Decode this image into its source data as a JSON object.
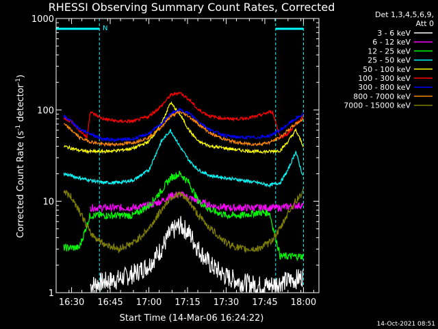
{
  "chart_data": {
    "type": "line",
    "title": "RHESSI Observing Summary Count Rates, Corrected",
    "xlabel": "Start Time (14-Mar-06 16:24:22)",
    "ylabel_main": "Corrected Count Rate (s",
    "ylabel_sup1": "-1",
    "ylabel_mid": " detector",
    "ylabel_sup2": "-1",
    "ylabel_end": ")",
    "yscale": "log",
    "ylim": [
      1,
      1000
    ],
    "xlim_minutes": [
      16.4,
      18.1
    ],
    "x_ticks": [
      {
        "v": 16.5,
        "label": "16:30"
      },
      {
        "v": 16.75,
        "label": "16:45"
      },
      {
        "v": 17.0,
        "label": "17:00"
      },
      {
        "v": 17.25,
        "label": "17:15"
      },
      {
        "v": 17.5,
        "label": "17:30"
      },
      {
        "v": 17.75,
        "label": "17:45"
      },
      {
        "v": 18.0,
        "label": "18:00"
      }
    ],
    "y_ticks": [
      {
        "v": 1,
        "label": "1"
      },
      {
        "v": 10,
        "label": "10"
      },
      {
        "v": 100,
        "label": "100"
      },
      {
        "v": 1000,
        "label": "1000"
      }
    ],
    "legend_header": [
      "Det 1,3,4,5,6,9,",
      "Att 0"
    ],
    "legend_position": "right",
    "flag_label": "N",
    "night_intervals": [
      [
        16.4,
        16.68
      ],
      [
        17.82,
        18.0
      ]
    ],
    "series": [
      {
        "name": "3 - 6 keV",
        "color": "#ffffff",
        "x": [
          16.45,
          16.55,
          16.62,
          16.7,
          16.8,
          16.9,
          17.0,
          17.08,
          17.14,
          17.2,
          17.26,
          17.32,
          17.4,
          17.5,
          17.6,
          17.7,
          17.78,
          17.85,
          17.95,
          18.0
        ],
        "y": [
          null,
          null,
          1.2,
          1.3,
          1.4,
          1.6,
          2.0,
          3.0,
          4.5,
          5.5,
          4.5,
          3.0,
          2.0,
          1.5,
          1.3,
          1.2,
          1.2,
          1.3,
          1.4,
          1.5
        ]
      },
      {
        "name": "6 - 12 keV",
        "color": "#ff00ff",
        "x": [
          16.45,
          16.55,
          16.62,
          16.7,
          16.8,
          16.9,
          17.0,
          17.08,
          17.14,
          17.2,
          17.26,
          17.32,
          17.4,
          17.5,
          17.6,
          17.7,
          17.78,
          17.85,
          17.95,
          18.0
        ],
        "y": [
          null,
          null,
          8.5,
          8.5,
          8.5,
          8.5,
          9.0,
          10.0,
          11.5,
          12.0,
          11.0,
          10.0,
          9.0,
          8.5,
          8.5,
          8.5,
          8.5,
          8.5,
          9.0,
          9.0
        ]
      },
      {
        "name": "12 - 25 keV",
        "color": "#00ff00",
        "x": [
          16.45,
          16.55,
          16.62,
          16.7,
          16.8,
          16.9,
          17.0,
          17.08,
          17.14,
          17.2,
          17.26,
          17.32,
          17.4,
          17.5,
          17.6,
          17.7,
          17.78,
          17.85,
          17.95,
          18.0
        ],
        "y": [
          3.1,
          3.1,
          7.0,
          7.0,
          7.0,
          7.0,
          9.0,
          13.0,
          18.0,
          20.0,
          16.0,
          10.0,
          8.0,
          7.0,
          7.0,
          7.5,
          7.5,
          2.5,
          2.5,
          2.5
        ]
      },
      {
        "name": "25 - 50 keV",
        "color": "#00ffff",
        "x": [
          16.45,
          16.5,
          16.55,
          16.62,
          16.7,
          16.8,
          16.9,
          17.0,
          17.08,
          17.14,
          17.2,
          17.26,
          17.32,
          17.4,
          17.5,
          17.6,
          17.7,
          17.78,
          17.85,
          17.9,
          17.95,
          18.0
        ],
        "y": [
          20,
          19,
          18,
          17,
          16,
          16,
          17,
          22,
          45,
          60,
          40,
          28,
          22,
          19,
          18,
          17,
          16,
          15,
          16,
          22,
          35,
          18
        ]
      },
      {
        "name": "50 - 100 keV",
        "color": "#ffff00",
        "x": [
          16.45,
          16.5,
          16.55,
          16.62,
          16.7,
          16.8,
          16.9,
          17.0,
          17.08,
          17.14,
          17.2,
          17.26,
          17.32,
          17.4,
          17.5,
          17.6,
          17.7,
          17.78,
          17.85,
          17.9,
          17.95,
          18.0
        ],
        "y": [
          40,
          38,
          36,
          35,
          35,
          36,
          38,
          45,
          70,
          120,
          90,
          60,
          45,
          40,
          38,
          36,
          35,
          35,
          36,
          45,
          60,
          40
        ]
      },
      {
        "name": "100 - 300 keV",
        "color": "#ff0000",
        "x": [
          16.45,
          16.5,
          16.55,
          16.6,
          16.62,
          16.7,
          16.8,
          16.9,
          17.0,
          17.08,
          17.14,
          17.2,
          17.26,
          17.32,
          17.4,
          17.5,
          17.6,
          17.7,
          17.78,
          17.8,
          17.85,
          17.9,
          17.95,
          18.0
        ],
        "y": [
          80,
          75,
          60,
          50,
          95,
          80,
          75,
          75,
          85,
          110,
          145,
          155,
          130,
          100,
          85,
          80,
          80,
          85,
          95,
          95,
          50,
          55,
          70,
          85
        ]
      },
      {
        "name": "300 - 800 keV",
        "color": "#0000ff",
        "x": [
          16.45,
          16.5,
          16.55,
          16.62,
          16.7,
          16.8,
          16.9,
          17.0,
          17.08,
          17.14,
          17.2,
          17.26,
          17.32,
          17.4,
          17.5,
          17.6,
          17.7,
          17.78,
          17.85,
          17.9,
          17.95,
          18.0
        ],
        "y": [
          85,
          75,
          62,
          55,
          48,
          47,
          48,
          55,
          70,
          90,
          100,
          92,
          75,
          60,
          52,
          50,
          50,
          52,
          60,
          70,
          80,
          90
        ]
      },
      {
        "name": "800 - 7000 keV",
        "color": "#ff8800",
        "x": [
          16.45,
          16.5,
          16.55,
          16.62,
          16.7,
          16.8,
          16.9,
          17.0,
          17.08,
          17.14,
          17.2,
          17.26,
          17.32,
          17.4,
          17.5,
          17.6,
          17.7,
          17.78,
          17.85,
          17.9,
          17.95,
          18.0
        ],
        "y": [
          70,
          60,
          50,
          45,
          42,
          42,
          44,
          50,
          65,
          85,
          95,
          85,
          70,
          55,
          47,
          43,
          42,
          44,
          50,
          60,
          70,
          80
        ]
      },
      {
        "name": "7000 - 15000 keV",
        "color": "#808000",
        "x": [
          16.45,
          16.5,
          16.55,
          16.62,
          16.7,
          16.8,
          16.9,
          17.0,
          17.08,
          17.14,
          17.2,
          17.26,
          17.32,
          17.4,
          17.5,
          17.6,
          17.7,
          17.78,
          17.85,
          17.9,
          17.95,
          18.0
        ],
        "y": [
          13,
          11,
          8,
          4.5,
          3.5,
          3,
          3.5,
          5,
          8,
          11,
          12,
          10,
          7,
          5,
          3.5,
          3,
          3,
          3.5,
          5,
          7.5,
          10,
          13
        ]
      }
    ]
  },
  "footer": {
    "timestamp": "14-Oct-2021 08:51"
  }
}
